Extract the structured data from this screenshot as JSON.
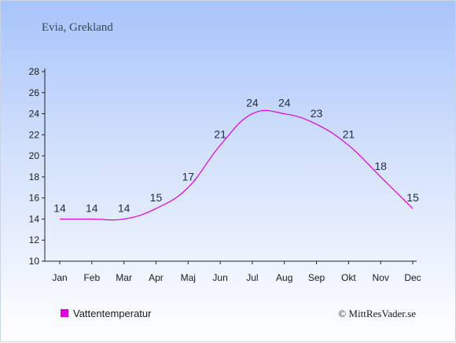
{
  "chart_data": {
    "type": "line",
    "title": "Evia, Grekland",
    "categories": [
      "Jan",
      "Feb",
      "Mar",
      "Apr",
      "Maj",
      "Jun",
      "Jul",
      "Aug",
      "Sep",
      "Okt",
      "Nov",
      "Dec"
    ],
    "series": [
      {
        "name": "Vattentemperatur",
        "color": "#dd00dd",
        "values": [
          14,
          14,
          14,
          15,
          17,
          21,
          24,
          24,
          23,
          21,
          18,
          15
        ]
      }
    ],
    "ylim": [
      10,
      28
    ],
    "yticks": [
      10,
      12,
      14,
      16,
      18,
      20,
      22,
      24,
      26,
      28
    ],
    "grid": false,
    "legend_position": "bottom-left"
  },
  "copyright": "© MittResVader.se"
}
